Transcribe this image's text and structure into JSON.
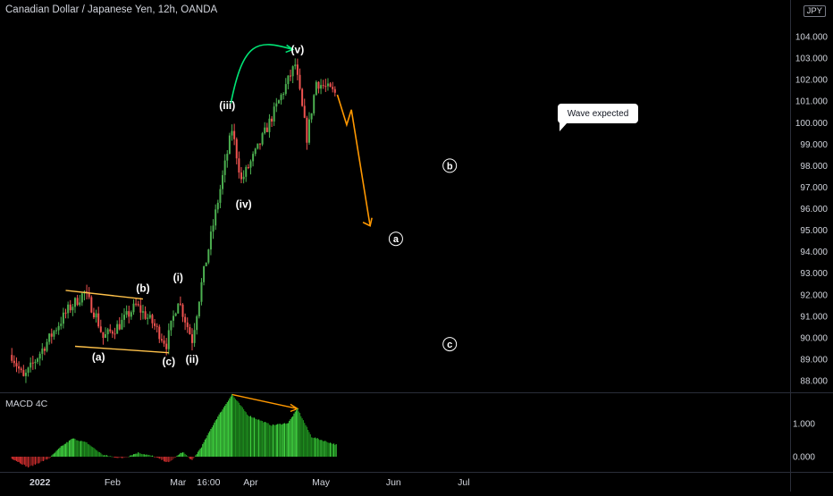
{
  "header": {
    "title": "Canadian Dollar / Japanese Yen, 12h, OANDA",
    "currency": "JPY"
  },
  "colors": {
    "up": "#26a69a",
    "up_bright": "#4caf50",
    "down": "#ef5350",
    "annotation": "#ff9800",
    "arrow_green": "#00e676",
    "macd_up": "#2fbf2f",
    "macd_down": "#c62828"
  },
  "chart_data": [
    {
      "type": "candlestick",
      "title": "Canadian Dollar / Japanese Yen, 12h, OANDA",
      "y_unit": "JPY",
      "ylim": [
        87.5,
        104.8
      ],
      "y_ticks": [
        "88.000",
        "89.000",
        "90.000",
        "91.000",
        "92.000",
        "93.000",
        "94.000",
        "95.000",
        "96.000",
        "97.000",
        "98.000",
        "99.000",
        "100.000",
        "101.000",
        "102.000",
        "103.000",
        "104.000"
      ],
      "x_ticks": [
        "2022",
        "Feb",
        "Mar",
        "16:00",
        "Apr",
        "May",
        "Jun",
        "Jul"
      ],
      "close_path": [
        {
          "t": "2021-12-20",
          "price": 89.2
        },
        {
          "t": "2021-12-25",
          "price": 88.1
        },
        {
          "t": "2022-01-04",
          "price": 89.8
        },
        {
          "t": "2022-01-13",
          "price": 91.3
        },
        {
          "t": "2022-01-20",
          "price": 92.1
        },
        {
          "t": "2022-01-25",
          "price": 91.0
        },
        {
          "t": "2022-01-28",
          "price": 90.0
        },
        {
          "t": "2022-02-04",
          "price": 90.6
        },
        {
          "t": "2022-02-11",
          "price": 91.5
        },
        {
          "t": "2022-02-18",
          "price": 90.7
        },
        {
          "t": "2022-02-24",
          "price": 89.7
        },
        {
          "t": "2022-03-01",
          "price": 91.8
        },
        {
          "t": "2022-03-07",
          "price": 89.9
        },
        {
          "t": "2022-03-11",
          "price": 92.5
        },
        {
          "t": "2022-03-17",
          "price": 95.8
        },
        {
          "t": "2022-03-24",
          "price": 99.7
        },
        {
          "t": "2022-03-28",
          "price": 97.3
        },
        {
          "t": "2022-04-04",
          "price": 98.8
        },
        {
          "t": "2022-04-11",
          "price": 100.5
        },
        {
          "t": "2022-04-20",
          "price": 102.7
        },
        {
          "t": "2022-04-25",
          "price": 99.3
        },
        {
          "t": "2022-04-29",
          "price": 101.9
        },
        {
          "t": "2022-05-08",
          "price": 101.3
        }
      ],
      "wave_labels": [
        {
          "text": "(a)",
          "t": "2022-01-26",
          "price": 89.1
        },
        {
          "text": "(b)",
          "t": "2022-02-14",
          "price": 92.3
        },
        {
          "text": "(c)",
          "t": "2022-02-25",
          "price": 88.9
        },
        {
          "text": "(i)",
          "t": "2022-03-01",
          "price": 92.8
        },
        {
          "text": "(ii)",
          "t": "2022-03-07",
          "price": 89.0
        },
        {
          "text": "(iii)",
          "t": "2022-03-22",
          "price": 100.8
        },
        {
          "text": "(iv)",
          "t": "2022-03-29",
          "price": 96.2
        },
        {
          "text": "(v)",
          "t": "2022-04-21",
          "price": 103.4
        },
        {
          "text": "a",
          "t": "2022-06-02",
          "price": 94.6,
          "circled": true
        },
        {
          "text": "b",
          "t": "2022-06-25",
          "price": 98.0,
          "circled": true
        },
        {
          "text": "c",
          "t": "2022-06-25",
          "price": 89.7,
          "circled": true
        }
      ],
      "callout": "Wave expected",
      "projection_path": [
        {
          "t": "2022-05-08",
          "price": 101.3
        },
        {
          "t": "2022-05-12",
          "price": 99.9
        },
        {
          "t": "2022-05-14",
          "price": 100.6
        },
        {
          "t": "2022-05-22",
          "price": 95.2
        }
      ],
      "channel": {
        "upper": [
          {
            "t": "2022-01-12",
            "price": 92.2
          },
          {
            "t": "2022-02-14",
            "price": 91.8
          }
        ],
        "lower": [
          {
            "t": "2022-01-16",
            "price": 89.6
          },
          {
            "t": "2022-02-25",
            "price": 89.3
          }
        ]
      }
    },
    {
      "type": "bar",
      "title": "MACD 4C",
      "y_ticks": [
        "1.000",
        "0.000"
      ],
      "ylim": [
        -0.4,
        1.95
      ],
      "histogram_path": [
        {
          "t": "2021-12-20",
          "value": -0.05
        },
        {
          "t": "2021-12-27",
          "value": -0.32
        },
        {
          "t": "2022-01-05",
          "value": -0.05
        },
        {
          "t": "2022-01-10",
          "value": 0.3
        },
        {
          "t": "2022-01-15",
          "value": 0.55
        },
        {
          "t": "2022-01-21",
          "value": 0.42
        },
        {
          "t": "2022-01-28",
          "value": 0.05
        },
        {
          "t": "2022-02-05",
          "value": -0.05
        },
        {
          "t": "2022-02-12",
          "value": 0.12
        },
        {
          "t": "2022-02-18",
          "value": 0.02
        },
        {
          "t": "2022-02-25",
          "value": -0.18
        },
        {
          "t": "2022-03-03",
          "value": 0.15
        },
        {
          "t": "2022-03-07",
          "value": -0.12
        },
        {
          "t": "2022-03-11",
          "value": 0.3
        },
        {
          "t": "2022-03-17",
          "value": 1.1
        },
        {
          "t": "2022-03-24",
          "value": 1.88
        },
        {
          "t": "2022-03-31",
          "value": 1.25
        },
        {
          "t": "2022-04-10",
          "value": 0.95
        },
        {
          "t": "2022-04-17",
          "value": 1.02
        },
        {
          "t": "2022-04-21",
          "value": 1.45
        },
        {
          "t": "2022-04-27",
          "value": 0.6
        },
        {
          "t": "2022-05-08",
          "value": 0.35
        }
      ],
      "divergence": [
        {
          "t": "2022-03-24",
          "value": 1.88
        },
        {
          "t": "2022-04-21",
          "value": 1.45
        }
      ]
    }
  ]
}
